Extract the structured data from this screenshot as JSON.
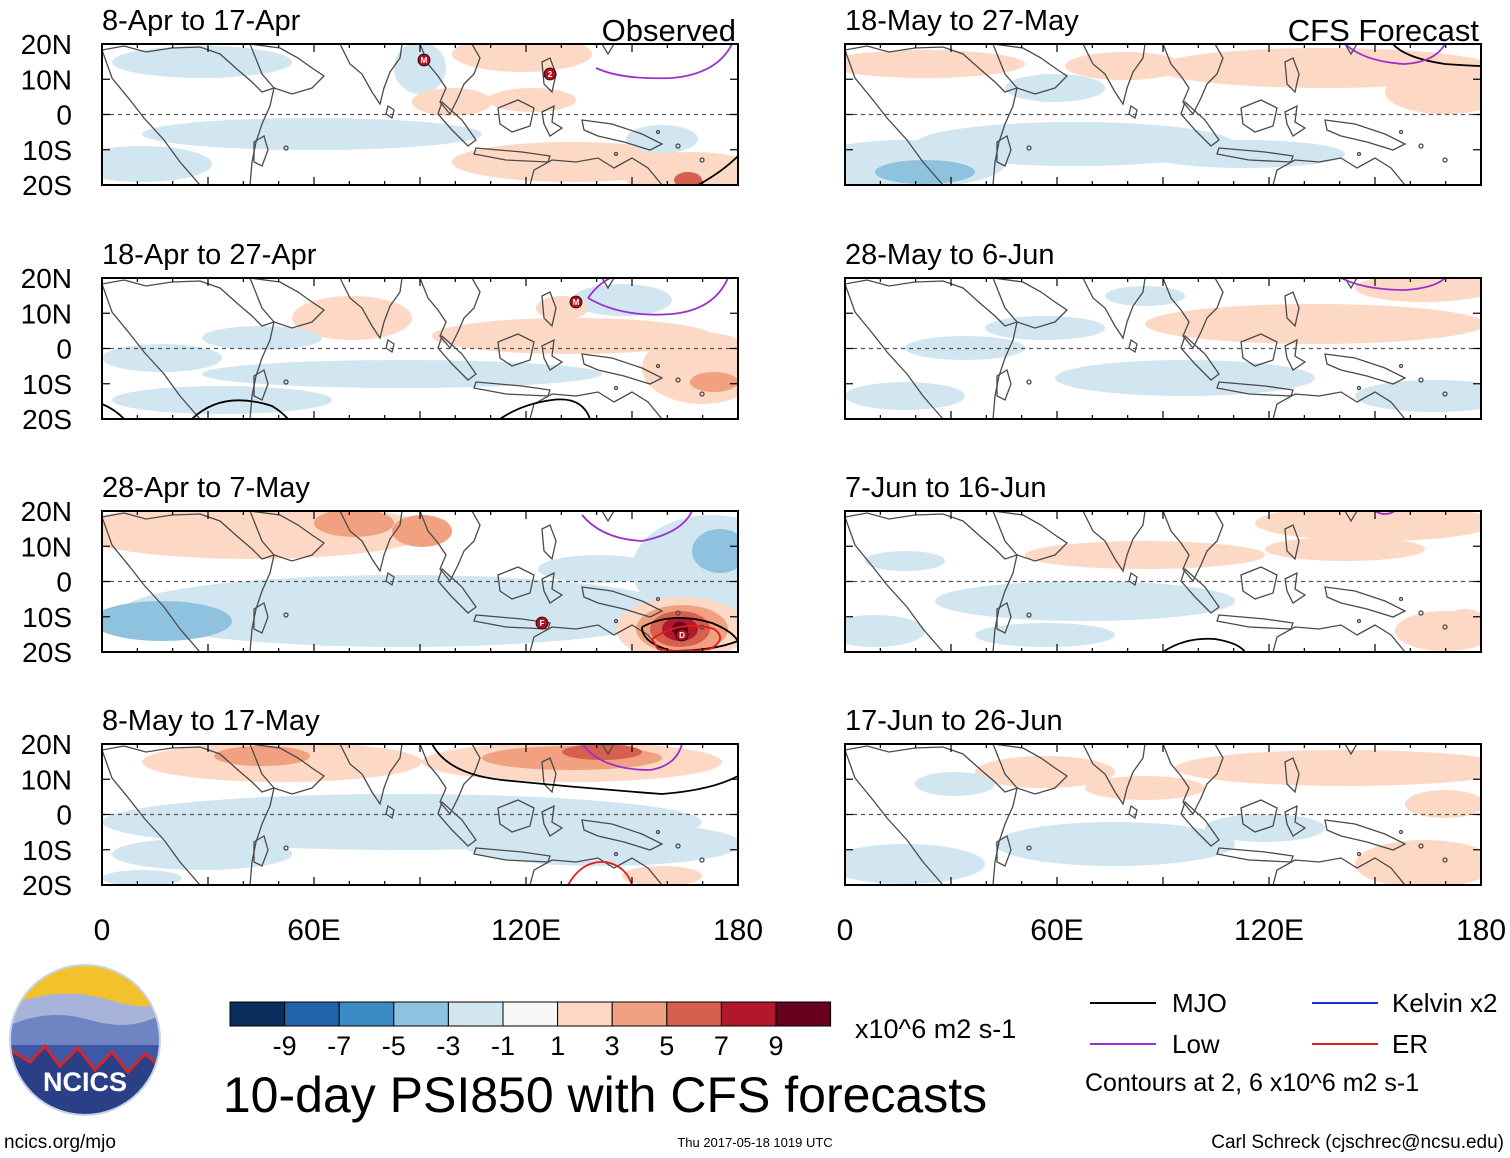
{
  "figure": {
    "title": "10-day PSI850 with CFS forecasts",
    "observed_label": "Observed",
    "forecast_label": "CFS Forecast",
    "units": "x10^6 m2 s-1",
    "contour_note": "Contours at 2, 6 x10^6 m2 s-1",
    "site": "ncics.org/mjo",
    "timestamp": "Thu 2017-05-18 1019 UTC",
    "author": "Carl Schreck (cjschrec@ncsu.edu)",
    "logo_text": "NCICS"
  },
  "axes": {
    "lat_ticks": [
      "20N",
      "10N",
      "0",
      "10S",
      "20S"
    ],
    "lon_ticks": [
      "0",
      "60E",
      "120E",
      "180"
    ]
  },
  "colorbar": {
    "colors": [
      "#0b2d5e",
      "#1f63a8",
      "#3b8cc4",
      "#8ec2de",
      "#d2e6f1",
      "#f7f7f7",
      "#fcd8c5",
      "#f1a17f",
      "#d6604d",
      "#b2182b",
      "#67001f"
    ],
    "tick_labels": [
      "-9",
      "-7",
      "-5",
      "-3",
      "-1",
      "1",
      "3",
      "5",
      "7",
      "9"
    ]
  },
  "legend": [
    {
      "label": "MJO",
      "color": "#000000"
    },
    {
      "label": "Kelvin x2",
      "color": "#1a2fd6"
    },
    {
      "label": "Low",
      "color": "#9932cc"
    },
    {
      "label": "ER",
      "color": "#e31a1c"
    }
  ],
  "panels": [
    {
      "date": "8-Apr to 17-Apr",
      "kind": "observed",
      "storms": [
        "M",
        "2"
      ]
    },
    {
      "date": "18-Apr to 27-Apr",
      "kind": "observed",
      "storms": [
        "M"
      ]
    },
    {
      "date": "28-Apr to 7-May",
      "kind": "observed",
      "storms": [
        "F",
        "D"
      ]
    },
    {
      "date": "8-May to 17-May",
      "kind": "observed",
      "storms": []
    },
    {
      "date": "18-May to 27-May",
      "kind": "forecast",
      "storms": []
    },
    {
      "date": "28-May to 6-Jun",
      "kind": "forecast",
      "storms": []
    },
    {
      "date": "7-Jun to 16-Jun",
      "kind": "forecast",
      "storms": []
    },
    {
      "date": "17-Jun to 26-Jun",
      "kind": "forecast",
      "storms": []
    }
  ]
}
